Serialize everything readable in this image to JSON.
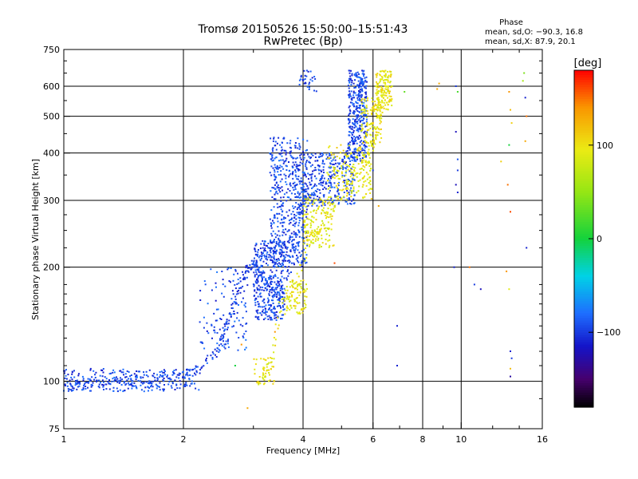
{
  "chart_data": {
    "type": "scatter",
    "title": "Tromsø 20150526 15:50:00–15:51:43",
    "subtitle": "RwPretec (Bp)",
    "xlabel": "Frequency [MHz]",
    "ylabel": "Stationary phase Virtual Height [km]",
    "x_scale": "log",
    "y_scale": "log",
    "xlim": [
      1,
      16
    ],
    "ylim": [
      75,
      750
    ],
    "x_ticks": [
      "1",
      "2",
      "4",
      "6",
      "8",
      "10",
      "16"
    ],
    "y_ticks": [
      "750",
      "600",
      "500",
      "400",
      "300",
      "200",
      "100",
      "75"
    ],
    "grid": true,
    "phase_stats": {
      "title": "Phase",
      "o_line": "mean, sd,O: −90.3, 16.8",
      "x_line": "mean, sd,X:  87.9, 20.1"
    },
    "colorbar": {
      "label": "[deg]",
      "ticks": [
        "100",
        "0",
        "−100"
      ],
      "range": [
        -180,
        180
      ]
    },
    "series": [
      {
        "mode": "O",
        "phase_deg": -95,
        "color": "#1840d8",
        "trace": [
          [
            1.0,
            96
          ],
          [
            1.1,
            97
          ],
          [
            1.2,
            99
          ],
          [
            1.4,
            100
          ],
          [
            1.6,
            101
          ],
          [
            1.8,
            102
          ],
          [
            2.0,
            104
          ],
          [
            2.2,
            108
          ],
          [
            2.4,
            118
          ],
          [
            2.5,
            128
          ],
          [
            2.6,
            145
          ],
          [
            2.7,
            160
          ],
          [
            2.8,
            185
          ],
          [
            2.9,
            200
          ],
          [
            3.0,
            205
          ],
          [
            3.1,
            195
          ],
          [
            3.3,
            175
          ],
          [
            3.5,
            165
          ],
          [
            3.7,
            200
          ],
          [
            3.9,
            280
          ],
          [
            4.0,
            300
          ],
          [
            4.3,
            320
          ],
          [
            4.6,
            340
          ],
          [
            5.0,
            380
          ],
          [
            5.3,
            420
          ],
          [
            5.5,
            500
          ],
          [
            5.6,
            600
          ],
          [
            5.7,
            650
          ]
        ],
        "bands": [
          {
            "x": [
              1.0,
              2.2
            ],
            "y": [
              94,
              108
            ],
            "n": 260
          },
          {
            "x": [
              2.2,
              2.9
            ],
            "y": [
              120,
              205
            ],
            "n": 120
          },
          {
            "x": [
              3.0,
              3.6
            ],
            "y": [
              145,
              235
            ],
            "n": 380
          },
          {
            "x": [
              3.3,
              4.1
            ],
            "y": [
              200,
              440
            ],
            "n": 520
          },
          {
            "x": [
              4.0,
              5.4
            ],
            "y": [
              290,
              400
            ],
            "n": 260
          },
          {
            "x": [
              5.2,
              5.8
            ],
            "y": [
              380,
              660
            ],
            "n": 320
          },
          {
            "x": [
              3.9,
              4.4
            ],
            "y": [
              580,
              660
            ],
            "n": 30
          }
        ]
      },
      {
        "mode": "X",
        "phase_deg": 95,
        "color": "#d8e010",
        "trace": [
          [
            3.1,
            100
          ],
          [
            3.3,
            110
          ],
          [
            3.5,
            160
          ],
          [
            3.8,
            170
          ],
          [
            4.1,
            230
          ],
          [
            4.4,
            250
          ],
          [
            4.8,
            290
          ],
          [
            5.2,
            330
          ],
          [
            5.6,
            370
          ],
          [
            5.9,
            400
          ],
          [
            6.1,
            450
          ],
          [
            6.3,
            550
          ],
          [
            6.5,
            650
          ]
        ],
        "bands": [
          {
            "x": [
              3.0,
              3.4
            ],
            "y": [
              98,
              115
            ],
            "n": 40
          },
          {
            "x": [
              3.6,
              4.1
            ],
            "y": [
              150,
              185
            ],
            "n": 80
          },
          {
            "x": [
              4.0,
              4.8
            ],
            "y": [
              225,
              310
            ],
            "n": 150
          },
          {
            "x": [
              4.6,
              6.0
            ],
            "y": [
              300,
              420
            ],
            "n": 160
          },
          {
            "x": [
              5.6,
              6.3
            ],
            "y": [
              420,
              560
            ],
            "n": 120
          },
          {
            "x": [
              6.1,
              6.7
            ],
            "y": [
              520,
              660
            ],
            "n": 130
          }
        ]
      }
    ],
    "sparse_points": [
      [
        13.2,
        580,
        140
      ],
      [
        13.3,
        520,
        120
      ],
      [
        13.4,
        480,
        110
      ],
      [
        13.2,
        420,
        0
      ],
      [
        13.1,
        330,
        150
      ],
      [
        13.3,
        280,
        160
      ],
      [
        13.0,
        195,
        140
      ],
      [
        13.2,
        175,
        90
      ],
      [
        13.3,
        120,
        -110
      ],
      [
        13.4,
        115,
        -100
      ],
      [
        13.3,
        108,
        120
      ],
      [
        13.3,
        103,
        -130
      ],
      [
        14.3,
        620,
        60
      ],
      [
        14.4,
        650,
        40
      ],
      [
        14.5,
        560,
        -110
      ],
      [
        14.6,
        500,
        150
      ],
      [
        14.5,
        430,
        130
      ],
      [
        14.6,
        225,
        -110
      ],
      [
        9.7,
        600,
        -100
      ],
      [
        9.8,
        580,
        20
      ],
      [
        9.7,
        455,
        -120
      ],
      [
        9.8,
        385,
        -90
      ],
      [
        9.8,
        360,
        -100
      ],
      [
        9.7,
        330,
        -120
      ],
      [
        9.8,
        315,
        -110
      ],
      [
        9.6,
        200,
        -110
      ],
      [
        10.5,
        200,
        150
      ],
      [
        10.8,
        180,
        -100
      ],
      [
        11.2,
        175,
        -120
      ],
      [
        8.7,
        590,
        130
      ],
      [
        8.8,
        610,
        130
      ],
      [
        12.6,
        380,
        110
      ],
      [
        7.2,
        580,
        30
      ],
      [
        6.9,
        140,
        -110
      ],
      [
        6.9,
        110,
        -110
      ],
      [
        6.2,
        290,
        130
      ],
      [
        6.0,
        360,
        -100
      ],
      [
        2.9,
        85,
        130
      ],
      [
        2.8,
        125,
        140
      ],
      [
        3.4,
        135,
        140
      ],
      [
        4.8,
        205,
        160
      ],
      [
        2.7,
        110,
        0
      ]
    ]
  }
}
